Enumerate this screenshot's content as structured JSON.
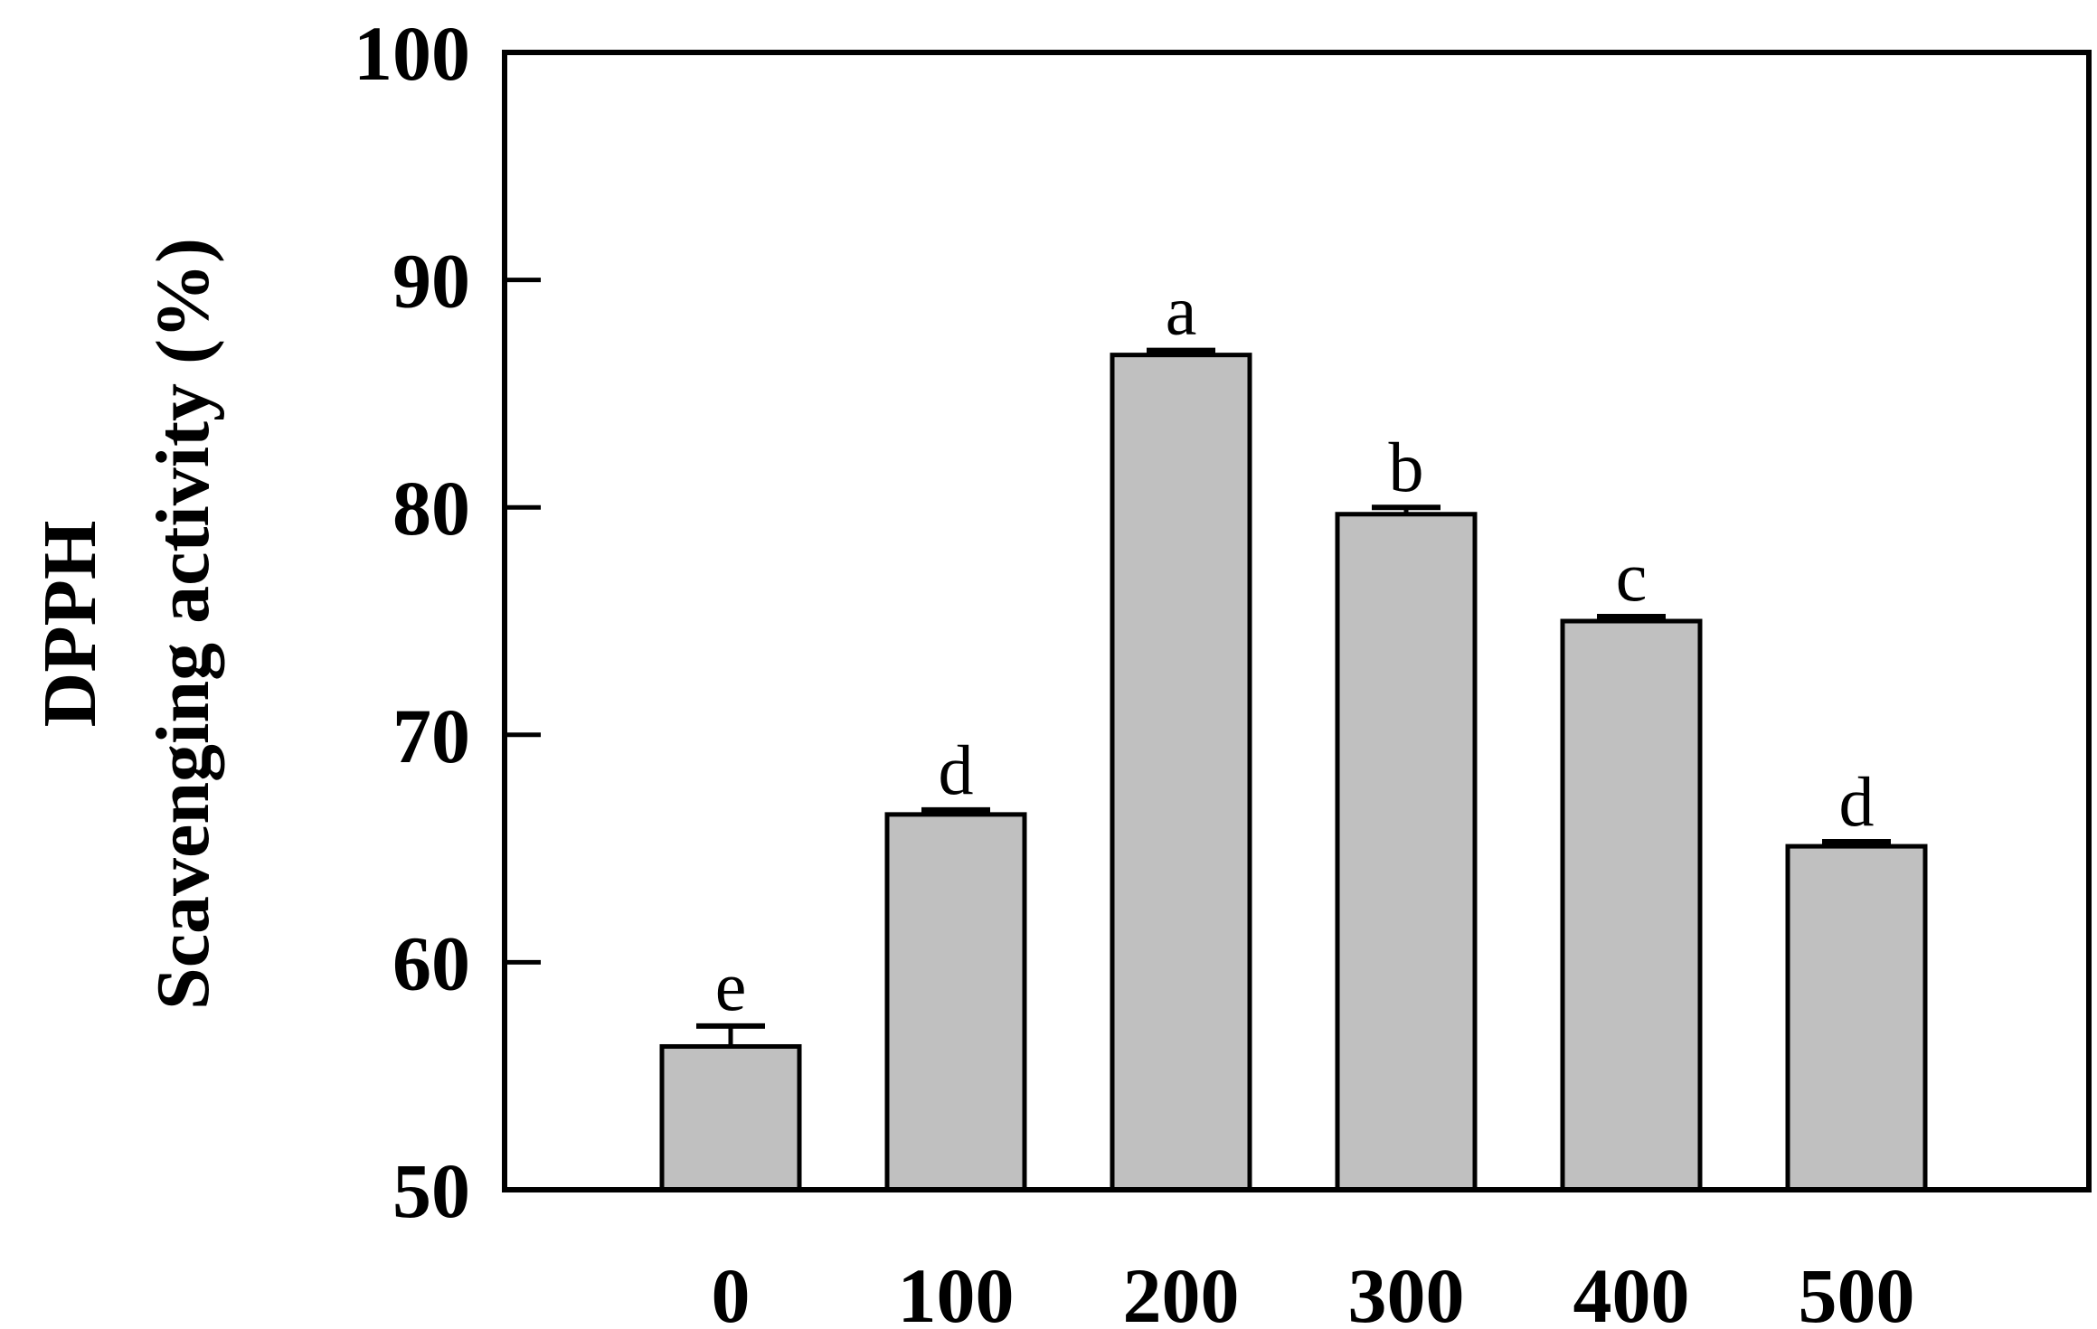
{
  "chart_data": {
    "type": "bar",
    "title": "",
    "xlabel": "",
    "ylabel_lines": [
      "DPPH",
      "Scavenging activity (%)"
    ],
    "categories": [
      "0",
      "100",
      "200",
      "300",
      "400",
      "500"
    ],
    "values": [
      56.3,
      66.5,
      86.7,
      79.7,
      75.0,
      65.1
    ],
    "errors": [
      0.9,
      0.2,
      0.2,
      0.3,
      0.2,
      0.2
    ],
    "significance": [
      "e",
      "d",
      "a",
      "b",
      "c",
      "d"
    ],
    "ylim": [
      50,
      100
    ],
    "yticks": [
      50,
      60,
      70,
      80,
      90,
      100
    ],
    "bar_color": "#c0c0c0",
    "edge_color": "#000000",
    "grid": false
  }
}
